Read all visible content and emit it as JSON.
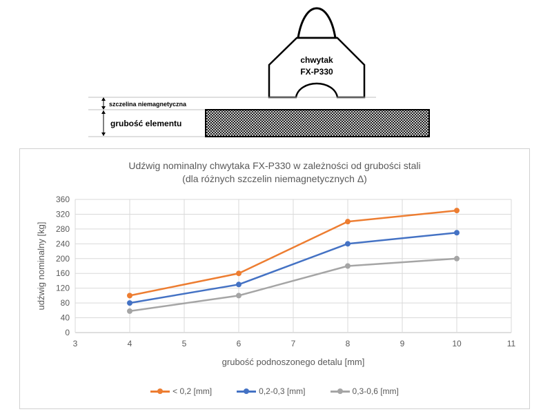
{
  "diagram": {
    "gripper_label_line1": "chwytak",
    "gripper_label_line2": "FX-P330",
    "gap_label": "szczelina niemagnetyczna",
    "thickness_label": "grubość elementu"
  },
  "chart_data": {
    "type": "line",
    "title_line1": "Udźwig nominalny chwytaka FX-P330 w zależności od grubości stali",
    "title_line2": "(dla różnych szczelin niemagnetycznych Δ)",
    "xlabel": "grubość podnoszonego detalu [mm]",
    "ylabel": "udźwig nominalny [kg]",
    "xlim": [
      3,
      11
    ],
    "ylim": [
      0,
      360
    ],
    "x_ticks": [
      3,
      4,
      5,
      6,
      7,
      8,
      9,
      10,
      11
    ],
    "y_ticks": [
      0,
      40,
      80,
      120,
      160,
      200,
      240,
      280,
      320,
      360
    ],
    "grid": true,
    "legend_position": "bottom",
    "x": [
      4,
      6,
      8,
      10
    ],
    "series": [
      {
        "name": "< 0,2 [mm]",
        "color": "#ED7D31",
        "values": [
          100,
          160,
          300,
          330
        ]
      },
      {
        "name": "0,2-0,3 [mm]",
        "color": "#4472C4",
        "values": [
          80,
          130,
          240,
          270
        ]
      },
      {
        "name": "0,3-0,6 [mm]",
        "color": "#A5A5A5",
        "values": [
          58,
          100,
          180,
          200
        ]
      }
    ]
  }
}
